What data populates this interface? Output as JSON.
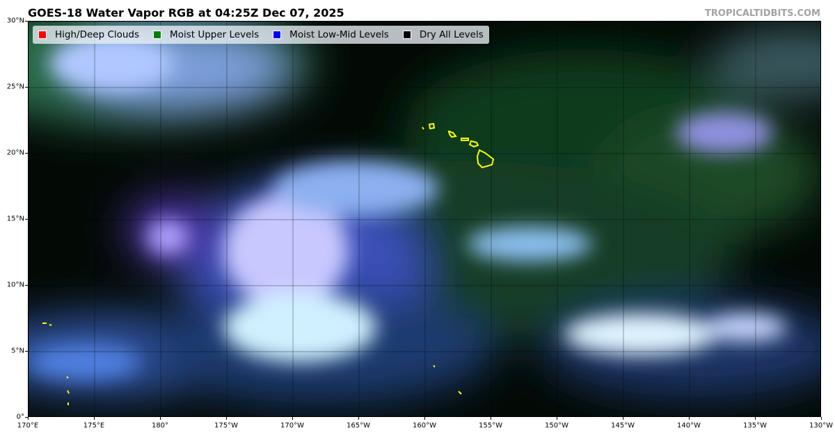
{
  "title": "GOES-18 Water Vapor RGB at 04:25Z Dec 07, 2025",
  "watermark": "TROPICALTIDBITS.COM",
  "legend": [
    {
      "label": "High/Deep Clouds",
      "color": "#ff0000"
    },
    {
      "label": "Moist Upper Levels",
      "color": "#008000"
    },
    {
      "label": "Moist Low-Mid Levels",
      "color": "#0000ff"
    },
    {
      "label": "Dry All Levels",
      "color": "#000000"
    }
  ],
  "lat_ticks": [
    "30°N",
    "25°N",
    "20°N",
    "15°N",
    "10°N",
    "5°N",
    "0°"
  ],
  "lon_ticks": [
    "170°E",
    "175°E",
    "180°",
    "175°W",
    "170°W",
    "165°W",
    "160°W",
    "155°W",
    "150°W",
    "145°W",
    "140°W",
    "135°W",
    "130°W"
  ],
  "coastline_color": "#ffff00",
  "map_extent": {
    "lon": [
      "170°E",
      "130°W"
    ],
    "lat": [
      "0°",
      "30°N"
    ]
  }
}
